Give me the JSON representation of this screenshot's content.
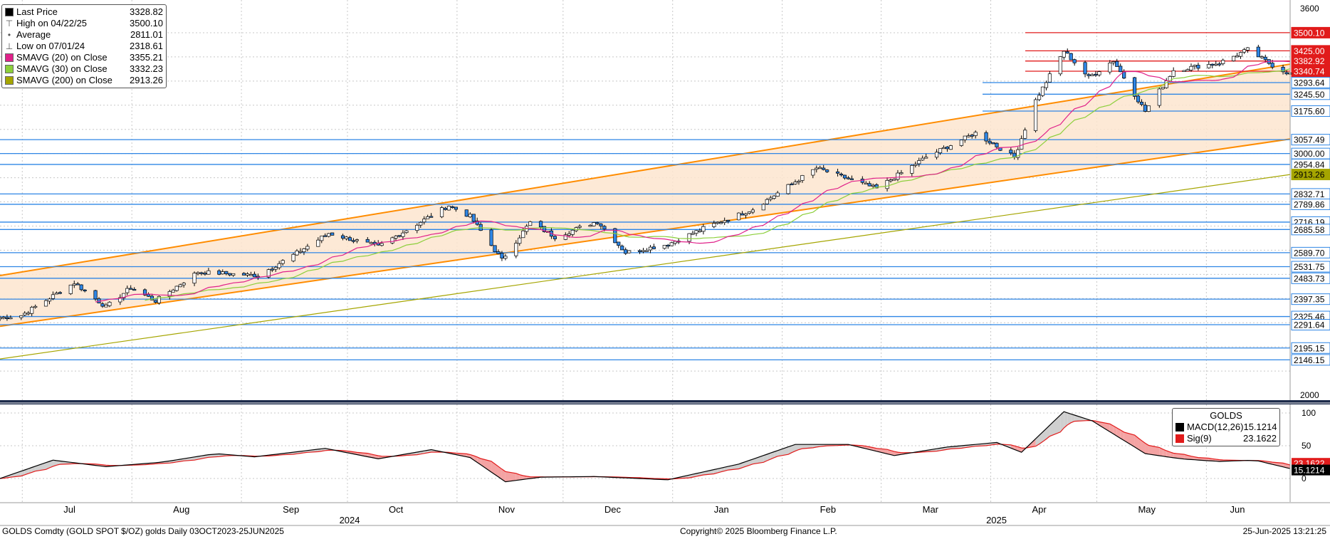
{
  "legend": {
    "items": [
      {
        "label": "Last Price",
        "value": "3328.82",
        "color": "#000000",
        "icon": "filled-square"
      },
      {
        "label": "High on 04/22/25",
        "value": "3500.10",
        "color": "#555555",
        "icon": "high-marker"
      },
      {
        "label": "Average",
        "value": "2811.01",
        "color": "#555555",
        "icon": "average-marker"
      },
      {
        "label": "Low on 07/01/24",
        "value": "2318.61",
        "color": "#555555",
        "icon": "low-marker"
      },
      {
        "label": "SMAVG (20)  on Close",
        "value": "3355.21",
        "color": "#e0218a",
        "icon": "filled-square"
      },
      {
        "label": "SMAVG (30)  on Close",
        "value": "3332.23",
        "color": "#8ccf3b",
        "icon": "filled-square"
      },
      {
        "label": "SMAVG (200)  on Close",
        "value": "2913.26",
        "color": "#a5a500",
        "icon": "filled-square"
      }
    ]
  },
  "macd_legend": {
    "title": "GOLDS",
    "items": [
      {
        "label": "MACD(12,26)",
        "value": "15.1214",
        "color": "#000000"
      },
      {
        "label": "Sig(9)",
        "value": "23.1622",
        "color": "#e11b1b"
      }
    ]
  },
  "footer": {
    "left": "GOLDS Comdty (GOLD SPOT $/OZ) golds  Daily 03OCT2023-25JUN2025",
    "center": "Copyright© 2025 Bloomberg Finance L.P.",
    "right": "25-Jun-2025 13:21:25"
  },
  "chart_data": {
    "type": "candlestick",
    "y_axis": {
      "min": 2000,
      "max": 3600,
      "ticks": [
        2000,
        3600
      ]
    },
    "macd_axis": {
      "min": -10,
      "max": 100,
      "ticks": [
        0,
        50,
        100
      ]
    },
    "x_axis": {
      "months": [
        "Jul",
        "Aug",
        "Sep",
        "Oct",
        "Nov",
        "Dec",
        "Jan",
        "Feb",
        "Mar",
        "Apr",
        "May",
        "Jun"
      ],
      "years": [
        "2024",
        "2025"
      ]
    },
    "level_labels": [
      {
        "value": "3500.10",
        "kind": "red"
      },
      {
        "value": "3425.00",
        "kind": "red"
      },
      {
        "value": "3382.92",
        "kind": "red"
      },
      {
        "value": "3340.74",
        "kind": "red"
      },
      {
        "value": "3293.64",
        "kind": "blue"
      },
      {
        "value": "3245.50",
        "kind": "blue"
      },
      {
        "value": "3175.60",
        "kind": "blue"
      },
      {
        "value": "3057.49",
        "kind": "blue"
      },
      {
        "value": "3000.00",
        "kind": "blue"
      },
      {
        "value": "2954.84",
        "kind": "blue"
      },
      {
        "value": "2913.26",
        "kind": "olive"
      },
      {
        "value": "2832.71",
        "kind": "blue"
      },
      {
        "value": "2789.86",
        "kind": "blue"
      },
      {
        "value": "2716.19",
        "kind": "blue"
      },
      {
        "value": "2685.58",
        "kind": "blue"
      },
      {
        "value": "2589.70",
        "kind": "blue"
      },
      {
        "value": "2531.75",
        "kind": "blue"
      },
      {
        "value": "2483.73",
        "kind": "blue"
      },
      {
        "value": "2397.35",
        "kind": "blue"
      },
      {
        "value": "2325.46",
        "kind": "blue"
      },
      {
        "value": "2291.64",
        "kind": "blue"
      },
      {
        "value": "2195.15",
        "kind": "blue"
      },
      {
        "value": "2146.15",
        "kind": "blue"
      }
    ],
    "macd_labels": [
      {
        "value": "23.1622",
        "kind": "red"
      },
      {
        "value": "15.1214",
        "kind": "black"
      }
    ],
    "price_path": [
      {
        "d": "2024-06-25",
        "p": 2320
      },
      {
        "d": "2024-07-01",
        "p": 2330
      },
      {
        "d": "2024-07-16",
        "p": 2465
      },
      {
        "d": "2024-07-25",
        "p": 2365
      },
      {
        "d": "2024-08-01",
        "p": 2445
      },
      {
        "d": "2024-08-08",
        "p": 2390
      },
      {
        "d": "2024-08-20",
        "p": 2510
      },
      {
        "d": "2024-09-06",
        "p": 2495
      },
      {
        "d": "2024-09-16",
        "p": 2580
      },
      {
        "d": "2024-09-26",
        "p": 2670
      },
      {
        "d": "2024-10-10",
        "p": 2615
      },
      {
        "d": "2024-10-30",
        "p": 2785
      },
      {
        "d": "2024-11-05",
        "p": 2740
      },
      {
        "d": "2024-11-14",
        "p": 2560
      },
      {
        "d": "2024-11-22",
        "p": 2715
      },
      {
        "d": "2024-11-29",
        "p": 2655
      },
      {
        "d": "2024-12-11",
        "p": 2720
      },
      {
        "d": "2024-12-19",
        "p": 2590
      },
      {
        "d": "2024-12-31",
        "p": 2625
      },
      {
        "d": "2025-01-10",
        "p": 2690
      },
      {
        "d": "2025-01-24",
        "p": 2770
      },
      {
        "d": "2025-02-11",
        "p": 2940
      },
      {
        "d": "2025-02-28",
        "p": 2855
      },
      {
        "d": "2025-03-14",
        "p": 2985
      },
      {
        "d": "2025-03-28",
        "p": 3085
      },
      {
        "d": "2025-04-08",
        "p": 2985
      },
      {
        "d": "2025-04-14",
        "p": 3220
      },
      {
        "d": "2025-04-22",
        "p": 3425
      },
      {
        "d": "2025-04-29",
        "p": 3315
      },
      {
        "d": "2025-05-06",
        "p": 3385
      },
      {
        "d": "2025-05-15",
        "p": 3175
      },
      {
        "d": "2025-05-23",
        "p": 3345
      },
      {
        "d": "2025-06-05",
        "p": 3375
      },
      {
        "d": "2025-06-13",
        "p": 3430
      },
      {
        "d": "2025-06-20",
        "p": 3365
      },
      {
        "d": "2025-06-25",
        "p": 3329
      }
    ],
    "sma200_path": [
      {
        "d": "2024-06-25",
        "p": 2150
      },
      {
        "d": "2025-06-25",
        "p": 2913
      }
    ],
    "channel": {
      "upper": [
        {
          "d": "2024-06-25",
          "p": 2495
        },
        {
          "d": "2025-06-25",
          "p": 3370
        }
      ],
      "lower": [
        {
          "d": "2024-06-25",
          "p": 2285
        },
        {
          "d": "2025-06-25",
          "p": 3060
        }
      ]
    },
    "macd_path": [
      {
        "d": "2024-06-25",
        "v": 0
      },
      {
        "d": "2024-07-10",
        "v": 28
      },
      {
        "d": "2024-07-25",
        "v": 18
      },
      {
        "d": "2024-08-10",
        "v": 25
      },
      {
        "d": "2024-08-25",
        "v": 38
      },
      {
        "d": "2024-09-05",
        "v": 33
      },
      {
        "d": "2024-09-25",
        "v": 46
      },
      {
        "d": "2024-10-10",
        "v": 30
      },
      {
        "d": "2024-10-25",
        "v": 44
      },
      {
        "d": "2024-11-05",
        "v": 32
      },
      {
        "d": "2024-11-15",
        "v": -5
      },
      {
        "d": "2024-11-25",
        "v": 2
      },
      {
        "d": "2024-12-10",
        "v": 3
      },
      {
        "d": "2024-12-31",
        "v": -2
      },
      {
        "d": "2025-01-20",
        "v": 22
      },
      {
        "d": "2025-02-05",
        "v": 52
      },
      {
        "d": "2025-02-20",
        "v": 52
      },
      {
        "d": "2025-03-05",
        "v": 35
      },
      {
        "d": "2025-03-20",
        "v": 48
      },
      {
        "d": "2025-04-03",
        "v": 55
      },
      {
        "d": "2025-04-10",
        "v": 40
      },
      {
        "d": "2025-04-22",
        "v": 102
      },
      {
        "d": "2025-04-30",
        "v": 88
      },
      {
        "d": "2025-05-15",
        "v": 38
      },
      {
        "d": "2025-05-25",
        "v": 30
      },
      {
        "d": "2025-06-05",
        "v": 26
      },
      {
        "d": "2025-06-15",
        "v": 28
      },
      {
        "d": "2025-06-25",
        "v": 15.12
      }
    ]
  },
  "colors": {
    "candle_up": "#ffffff",
    "candle_down": "#2f86e5",
    "candle_outline": "#000000",
    "channel_line": "#ff8c00",
    "channel_fill": "#fde5cf",
    "level_line": "#2f86e5",
    "red_level": "#e11b1b",
    "sma20": "#e0218a",
    "sma30": "#8ccf3b",
    "sma200": "#a5a500",
    "macd": "#000000",
    "signal": "#e11b1b",
    "grid": "#c8c8c8",
    "divider": "#1c2a4a"
  }
}
